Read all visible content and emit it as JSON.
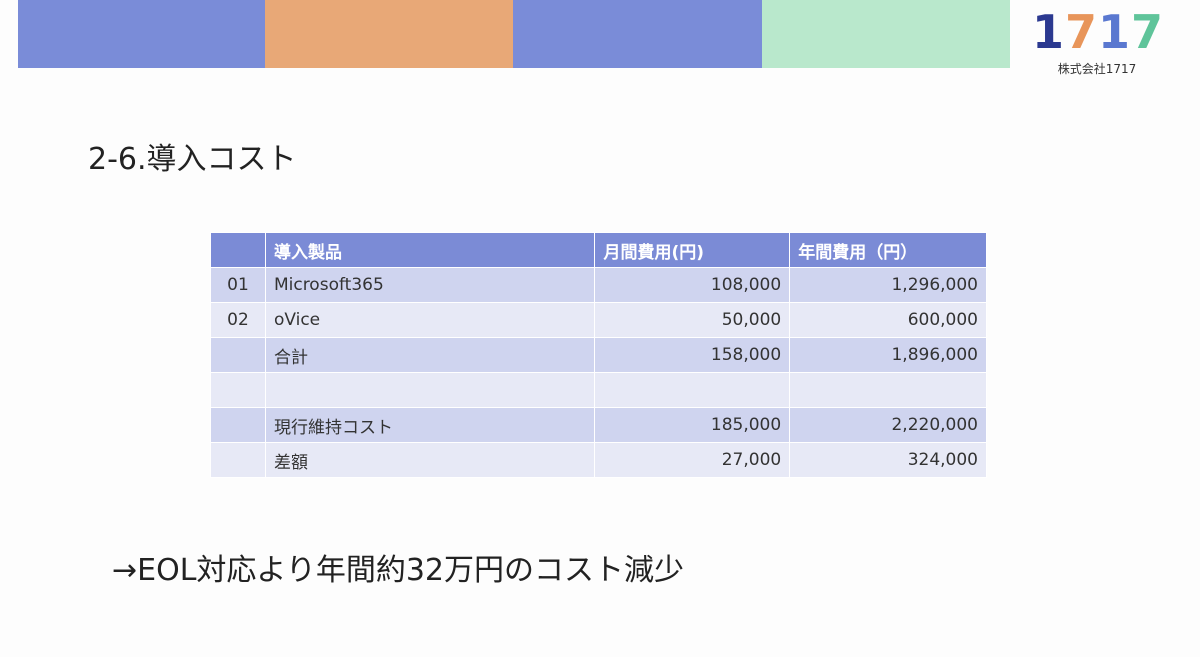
{
  "logo": {
    "mark": "1717",
    "company": "株式会社1717"
  },
  "title": "2-6.導入コスト",
  "table": {
    "header": [
      null,
      "導入製品",
      "月間費用(円)",
      "年間費用（円）"
    ],
    "rows": [
      [
        "01",
        "Microsoft365",
        "108,000",
        "1,296,000"
      ],
      [
        "02",
        "oVice",
        "50,000",
        "600,000"
      ],
      [
        null,
        "合計",
        "158,000",
        "1,896,000"
      ],
      [
        null,
        null,
        null,
        null
      ],
      [
        null,
        "現行維持コスト",
        "185,000",
        "2,220,000"
      ],
      [
        null,
        "差額",
        "27,000",
        "324,000"
      ]
    ]
  },
  "conclusion": "→EOL対応より年間約32万円のコスト減少"
}
